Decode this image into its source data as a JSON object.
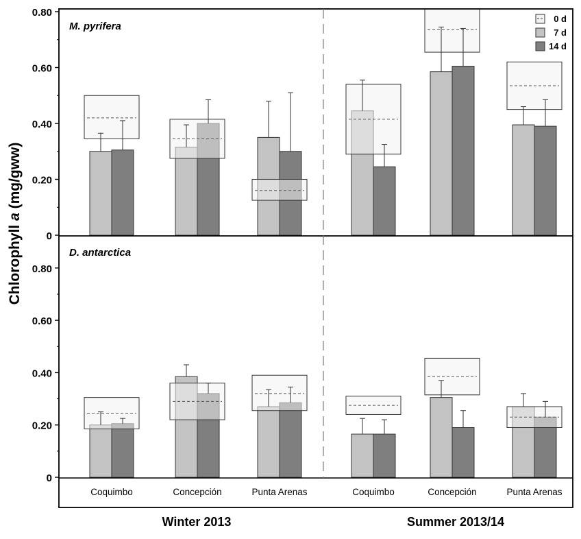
{
  "chart_data": {
    "type": "bar",
    "ylabel_prefix": "Chlorophyll ",
    "ylabel_italic": "a",
    "ylabel_suffix": " (mg/gww)",
    "ylim": [
      0,
      0.87
    ],
    "y_ticks": [
      "0",
      "0.20",
      "0.40",
      "0.60",
      "0.80"
    ],
    "seasons": [
      "Winter 2013",
      "Summer 2013/14"
    ],
    "sites": [
      "Coquimbo",
      "Concepción",
      "Punta Arenas",
      "Coquimbo",
      "Concepción",
      "Punta Arenas"
    ],
    "legend": [
      "0 d",
      "7 d",
      "14 d"
    ],
    "colors": {
      "day0_fill": "#f2f2f2",
      "day7_fill": "#c3c3c3",
      "day14_fill": "#7f7f7f",
      "edge": "#333333",
      "text": "#000000"
    },
    "notes": {
      "box": "0 d shown as a shaded box (range) with a dashed line at the mean",
      "bars": "7 d and 14 d shown as bars with upper error bars"
    },
    "panels": [
      {
        "label": "M. pyrifera",
        "groups": [
          {
            "site": "Coquimbo",
            "season": "Winter 2013",
            "day0": {
              "mean": 0.42,
              "low": 0.345,
              "high": 0.5
            },
            "day7": {
              "value": 0.3,
              "err": 0.065
            },
            "day14": {
              "value": 0.305,
              "err": 0.105
            }
          },
          {
            "site": "Concepción",
            "season": "Winter 2013",
            "day0": {
              "mean": 0.345,
              "low": 0.275,
              "high": 0.415
            },
            "day7": {
              "value": 0.315,
              "err": 0.08
            },
            "day14": {
              "value": 0.4,
              "err": 0.085
            }
          },
          {
            "site": "Punta Arenas",
            "season": "Winter 2013",
            "day0": {
              "mean": 0.16,
              "low": 0.125,
              "high": 0.2
            },
            "day7": {
              "value": 0.35,
              "err": 0.13
            },
            "day14": {
              "value": 0.3,
              "err": 0.21
            }
          },
          {
            "site": "Coquimbo",
            "season": "Summer 2013/14",
            "day0": {
              "mean": 0.415,
              "low": 0.29,
              "high": 0.54
            },
            "day7": {
              "value": 0.445,
              "err": 0.11
            },
            "day14": {
              "value": 0.245,
              "err": 0.08
            }
          },
          {
            "site": "Concepción",
            "season": "Summer 2013/14",
            "day0": {
              "mean": 0.735,
              "low": 0.655,
              "high": 0.81
            },
            "day7": {
              "value": 0.585,
              "err": 0.16
            },
            "day14": {
              "value": 0.605,
              "err": 0.135
            }
          },
          {
            "site": "Punta Arenas",
            "season": "Summer 2013/14",
            "day0": {
              "mean": 0.535,
              "low": 0.45,
              "high": 0.62
            },
            "day7": {
              "value": 0.395,
              "err": 0.065
            },
            "day14": {
              "value": 0.39,
              "err": 0.095
            }
          }
        ]
      },
      {
        "label": "D. antarctica",
        "groups": [
          {
            "site": "Coquimbo",
            "season": "Winter 2013",
            "day0": {
              "mean": 0.245,
              "low": 0.185,
              "high": 0.305
            },
            "day7": {
              "value": 0.2,
              "err": 0.05
            },
            "day14": {
              "value": 0.205,
              "err": 0.02
            }
          },
          {
            "site": "Concepción",
            "season": "Winter 2013",
            "day0": {
              "mean": 0.29,
              "low": 0.22,
              "high": 0.36
            },
            "day7": {
              "value": 0.385,
              "err": 0.045
            },
            "day14": {
              "value": 0.32,
              "err": 0.04
            }
          },
          {
            "site": "Punta Arenas",
            "season": "Winter 2013",
            "day0": {
              "mean": 0.32,
              "low": 0.255,
              "high": 0.39
            },
            "day7": {
              "value": 0.27,
              "err": 0.065
            },
            "day14": {
              "value": 0.285,
              "err": 0.06
            }
          },
          {
            "site": "Coquimbo",
            "season": "Summer 2013/14",
            "day0": {
              "mean": 0.275,
              "low": 0.24,
              "high": 0.31
            },
            "day7": {
              "value": 0.165,
              "err": 0.06
            },
            "day14": {
              "value": 0.165,
              "err": 0.055
            }
          },
          {
            "site": "Concepción",
            "season": "Summer 2013/14",
            "day0": {
              "mean": 0.385,
              "low": 0.315,
              "high": 0.455
            },
            "day7": {
              "value": 0.305,
              "err": 0.065
            },
            "day14": {
              "value": 0.19,
              "err": 0.065
            }
          },
          {
            "site": "Punta Arenas",
            "season": "Summer 2013/14",
            "day0": {
              "mean": 0.23,
              "low": 0.19,
              "high": 0.27
            },
            "day7": {
              "value": 0.27,
              "err": 0.05
            },
            "day14": {
              "value": 0.23,
              "err": 0.06
            }
          }
        ]
      }
    ]
  }
}
